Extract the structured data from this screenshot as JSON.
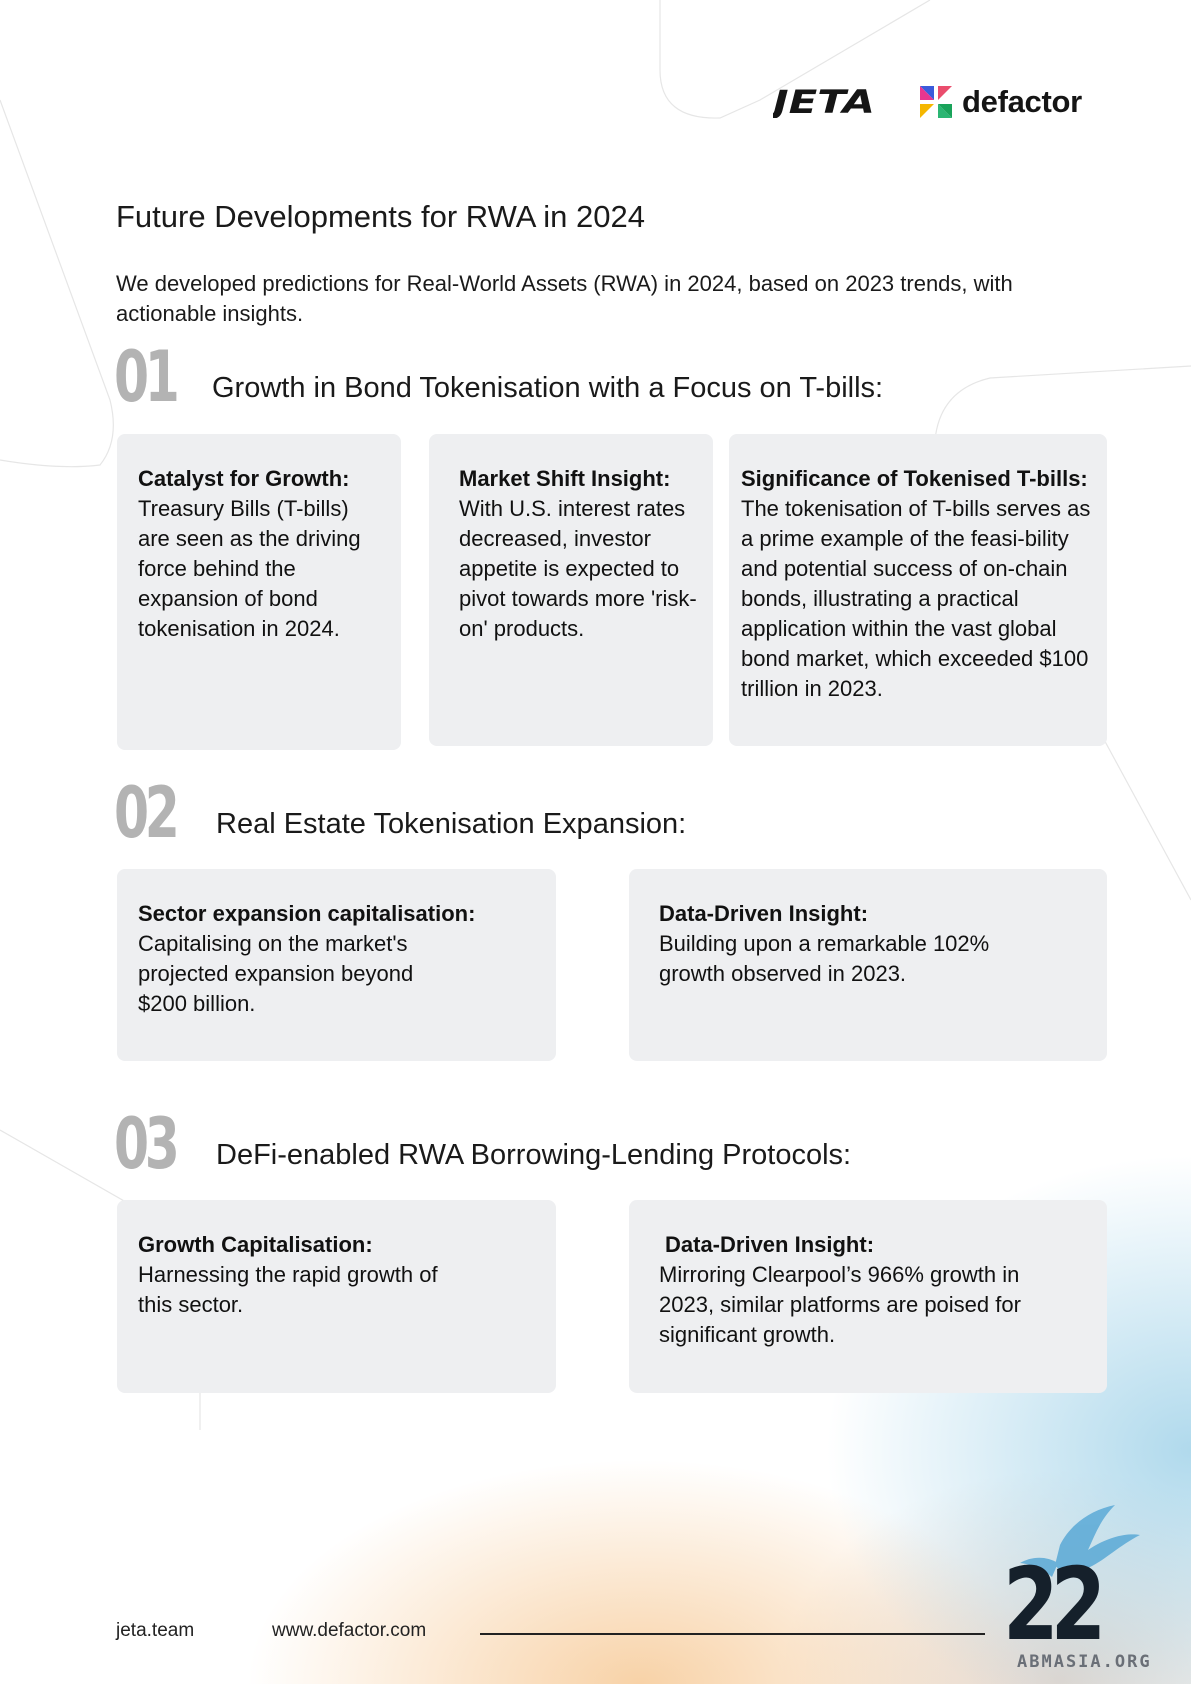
{
  "header": {
    "logo_jeta": "JETA",
    "logo_defactor": "defactor"
  },
  "page_title": "Future Developments for RWA in 2024",
  "intro": "We developed predictions for Real-World Assets (RWA) in 2024, based on 2023 trends, with actionable insights.",
  "sections": [
    {
      "number": "01",
      "title": "Growth in Bond Tokenisation with a Focus on T-bills:",
      "cards": [
        {
          "head": "Catalyst for Growth:",
          "body": "Treasury Bills (T-bills) are seen as the driving force behind the expansion of bond tokenisation in 2024."
        },
        {
          "head": "Market Shift Insight:",
          "body": "With U.S. interest rates decreased, investor appetite is expected to pivot towards more 'risk-on' products."
        },
        {
          "head": "Significance of Tokenised T-bills:",
          "body": "The tokenisation of T-bills serves as a prime example of the feasi-bility and potential success of on-chain bonds, illustrating a practical application within the vast global bond market, which exceeded $100 trillion in 2023."
        }
      ]
    },
    {
      "number": "02",
      "title": "Real Estate Tokenisation Expansion:",
      "cards": [
        {
          "head": "Sector expansion capitalisation:",
          "body": "Capitalising on the market's projected expansion beyond $200 billion."
        },
        {
          "head": "Data-Driven Insight:",
          "body": "Building upon a remarkable 102% growth observed in 2023."
        }
      ]
    },
    {
      "number": "03",
      "title": "DeFi-enabled RWA Borrowing-Lending Protocols:",
      "cards": [
        {
          "head": "Growth Capitalisation:",
          "body": "Harnessing the rapid growth of this sector."
        },
        {
          "head": "Data-Driven Insight:",
          "body": "Mirroring Clearpool’s 966% growth in 2023, similar platforms are poised for significant growth."
        }
      ]
    }
  ],
  "footer": {
    "link_jeta": "jeta.team",
    "link_defactor": "www.defactor.com",
    "page_number": "22",
    "watermark": "ABMASIA.ORG"
  },
  "colors": {
    "card_bg": "#eeeff1",
    "number_gray": "#b3b3b3",
    "text": "#111111"
  }
}
